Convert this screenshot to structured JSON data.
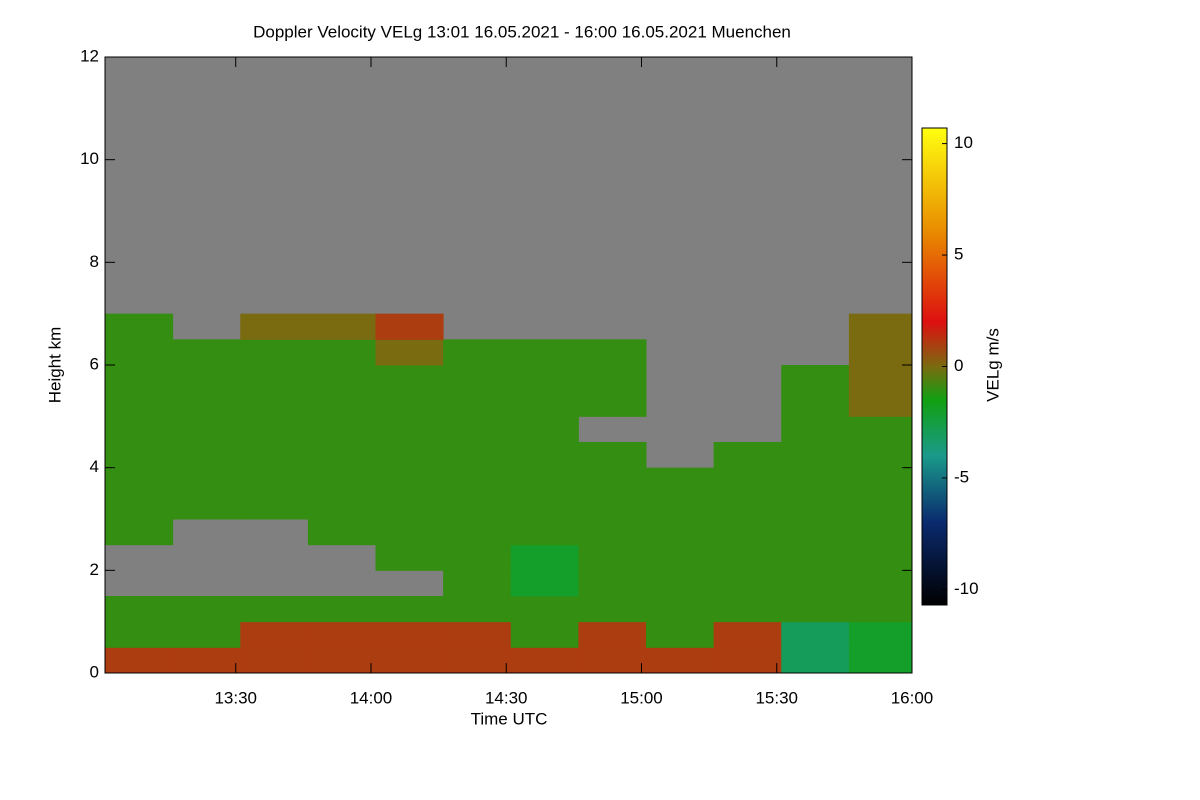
{
  "chart_data": {
    "type": "heatmap",
    "title": "Doppler Velocity VELg   13:01 16.05.2021 - 16:00 16.05.2021 Muenchen",
    "x_label": "Time UTC",
    "y_label": "Height km",
    "colorbar_label": "VELg m/s",
    "background_color": "#808080",
    "xlim": [
      781,
      960
    ],
    "xticks": [
      {
        "value": 810,
        "label": "13:30"
      },
      {
        "value": 840,
        "label": "14:00"
      },
      {
        "value": 870,
        "label": "14:30"
      },
      {
        "value": 900,
        "label": "15:00"
      },
      {
        "value": 930,
        "label": "15:30"
      },
      {
        "value": 960,
        "label": "16:00"
      }
    ],
    "ylim": [
      0,
      12
    ],
    "yticks": [
      0,
      2,
      4,
      6,
      8,
      10,
      12
    ],
    "zlim": [
      -10.7,
      10.7
    ],
    "zticks": [
      -10,
      -5,
      0,
      5,
      10
    ],
    "colorscale": [
      [
        -10.7,
        "#000000"
      ],
      [
        -7,
        "#0a2a6e"
      ],
      [
        -4,
        "#1a9a8a"
      ],
      [
        -1.5,
        "#11a011"
      ],
      [
        0,
        "#7a6a10"
      ],
      [
        2,
        "#dd1010"
      ],
      [
        6,
        "#e88a00"
      ],
      [
        10.7,
        "#ffff10"
      ]
    ],
    "xbins": [
      781,
      796,
      811,
      826,
      841,
      856,
      871,
      886,
      901,
      916,
      931,
      946,
      960
    ],
    "ybins": [
      0,
      0.5,
      1,
      1.5,
      2,
      2.5,
      3,
      3.5,
      4,
      4.5,
      5,
      5.5,
      6,
      6.5,
      7
    ],
    "z": [
      [
        1,
        1,
        1,
        1,
        1,
        1,
        1,
        1,
        1,
        1,
        -3,
        -2
      ],
      [
        -1,
        -1,
        1,
        1,
        1,
        1,
        -1,
        1,
        -1,
        1,
        -3,
        -2
      ],
      [
        -1,
        -1,
        -1,
        -1,
        -1,
        -1,
        -1,
        -1,
        -1,
        -1,
        -1,
        -1
      ],
      [
        null,
        null,
        null,
        null,
        null,
        -1,
        -2,
        -1,
        -1,
        -1,
        -1,
        -1
      ],
      [
        null,
        null,
        null,
        null,
        -1,
        -1,
        -2,
        -1,
        -1,
        -1,
        -1,
        -1
      ],
      [
        -1,
        null,
        null,
        -1,
        -1,
        -1,
        -1,
        -1,
        -1,
        -1,
        -1,
        -1
      ],
      [
        -1,
        -1,
        -1,
        -1,
        -1,
        -1,
        -1,
        -1,
        -1,
        -1,
        -1,
        -1
      ],
      [
        -1,
        -1,
        -1,
        -1,
        -1,
        -1,
        -1,
        -1,
        -1,
        -1,
        -1,
        -1
      ],
      [
        -1,
        -1,
        -1,
        -1,
        -1,
        -1,
        -1,
        -1,
        null,
        -1,
        -1,
        -1
      ],
      [
        -1,
        -1,
        -1,
        -1,
        -1,
        -1,
        -1,
        null,
        null,
        null,
        -1,
        -1
      ],
      [
        -1,
        -1,
        -1,
        -1,
        -1,
        -1,
        -1,
        -1,
        null,
        null,
        -1,
        0
      ],
      [
        -1,
        -1,
        -1,
        -1,
        -1,
        -1,
        -1,
        -1,
        null,
        null,
        -1,
        0
      ],
      [
        -1,
        -1,
        -1,
        -1,
        0,
        -1,
        -1,
        -1,
        null,
        null,
        null,
        0
      ],
      [
        -1,
        null,
        0,
        0,
        1,
        null,
        null,
        null,
        null,
        null,
        null,
        0
      ]
    ]
  }
}
